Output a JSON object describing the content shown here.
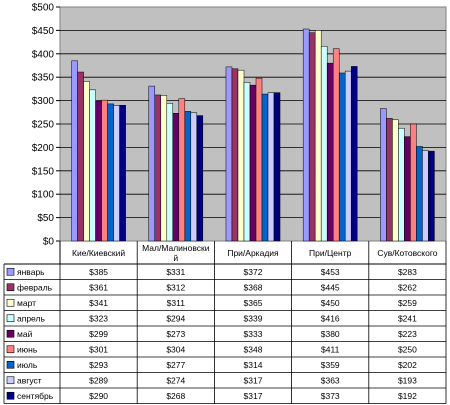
{
  "chart_data": {
    "type": "bar",
    "categories": [
      "Кие/Киевский",
      "Мал/Малиновский",
      "При/Аркадия",
      "При/Центр",
      "Сув/Котовского"
    ],
    "category_lines": [
      [
        "Кие/Киевский"
      ],
      [
        "Мал/Малиновски",
        "й"
      ],
      [
        "При/Аркадия"
      ],
      [
        "При/Центр"
      ],
      [
        "Сув/Котовского"
      ]
    ],
    "y_ticks": [
      "$0",
      "$50",
      "$100",
      "$150",
      "$200",
      "$250",
      "$300",
      "$350",
      "$400",
      "$450",
      "$500"
    ],
    "ylim": [
      0,
      500
    ],
    "grid": true,
    "legend_placement": "data-table-rows",
    "series": [
      {
        "name": "январь",
        "color": "#9999ff",
        "values": [
          385,
          331,
          372,
          453,
          283
        ],
        "labels": [
          "$385",
          "$331",
          "$372",
          "$453",
          "$283"
        ]
      },
      {
        "name": "февраль",
        "color": "#993366",
        "values": [
          361,
          312,
          368,
          445,
          262
        ],
        "labels": [
          "$361",
          "$312",
          "$368",
          "$445",
          "$262"
        ]
      },
      {
        "name": "март",
        "color": "#ffffcc",
        "values": [
          341,
          311,
          365,
          450,
          259
        ],
        "labels": [
          "$341",
          "$311",
          "$365",
          "$450",
          "$259"
        ]
      },
      {
        "name": "апрель",
        "color": "#ccffff",
        "values": [
          323,
          294,
          339,
          416,
          241
        ],
        "labels": [
          "$323",
          "$294",
          "$339",
          "$416",
          "$241"
        ]
      },
      {
        "name": "май",
        "color": "#660066",
        "values": [
          299,
          273,
          333,
          380,
          223
        ],
        "labels": [
          "$299",
          "$273",
          "$333",
          "$380",
          "$223"
        ]
      },
      {
        "name": "июнь",
        "color": "#ff8080",
        "values": [
          301,
          304,
          348,
          411,
          250
        ],
        "labels": [
          "$301",
          "$304",
          "$348",
          "$411",
          "$250"
        ]
      },
      {
        "name": "июль",
        "color": "#0066cc",
        "values": [
          293,
          277,
          314,
          359,
          202
        ],
        "labels": [
          "$293",
          "$277",
          "$314",
          "$359",
          "$202"
        ]
      },
      {
        "name": "август",
        "color": "#ccccff",
        "values": [
          289,
          274,
          317,
          363,
          193
        ],
        "labels": [
          "$289",
          "$274",
          "$317",
          "$363",
          "$193"
        ]
      },
      {
        "name": "сентябрь",
        "color": "#000080",
        "values": [
          290,
          268,
          317,
          373,
          192
        ],
        "labels": [
          "$290",
          "$268",
          "$317",
          "$373",
          "$192"
        ]
      }
    ],
    "plot_background": "#c0c0c0"
  }
}
